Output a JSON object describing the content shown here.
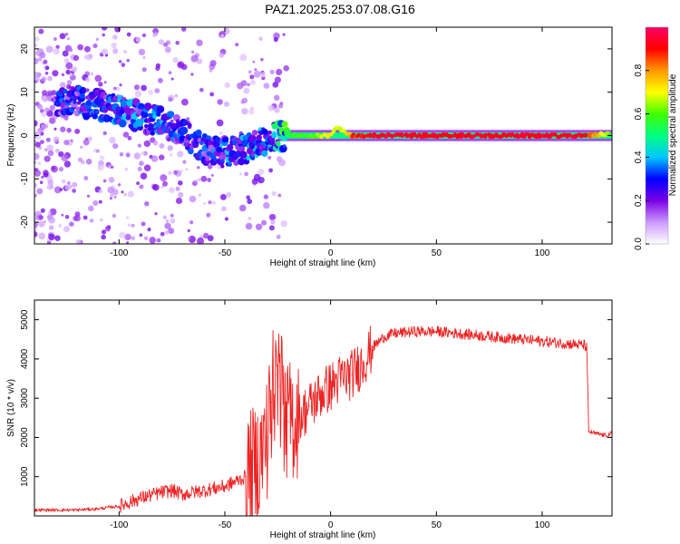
{
  "title": "PAZ1.2025.253.07.08.G16",
  "chart_data": [
    {
      "type": "heatmap",
      "xlabel": "Height of straight line (km)",
      "ylabel": "Frequency (Hz)",
      "xlim": [
        -140,
        133
      ],
      "ylim": [
        -25,
        25
      ],
      "xticks": [
        -100,
        -50,
        0,
        50,
        100
      ],
      "xtick_labels": [
        "-100",
        "-50",
        "0",
        "50",
        "100"
      ],
      "yticks": [
        -20,
        -10,
        0,
        10,
        20
      ],
      "ytick_labels": [
        "-20",
        "-10",
        "0",
        "10",
        "20"
      ],
      "colorbar": {
        "label": "Normalized spectral amplitude",
        "range": [
          0,
          1
        ],
        "ticks": [
          0.0,
          0.2,
          0.4,
          0.6,
          0.8
        ],
        "tick_labels": [
          "0.0",
          "0.2",
          "0.4",
          "0.6",
          "0.8"
        ],
        "colors": [
          "#ffffff",
          "#cc99ff",
          "#7a00e6",
          "#0000ff",
          "#00c8ff",
          "#00ff80",
          "#40ff00",
          "#ffff00",
          "#ff9900",
          "#ff0000",
          "#ff0066"
        ]
      },
      "ridge": {
        "x": [
          -120,
          -100,
          -80,
          -70,
          -60,
          -50,
          -40,
          -30,
          -25,
          -20,
          -10,
          0,
          3,
          7,
          10,
          20,
          40,
          60,
          80,
          100,
          120,
          133
        ],
        "freq": [
          8,
          6,
          3,
          1,
          -3,
          -4,
          -3,
          -1,
          0,
          0,
          0,
          0,
          2,
          1,
          0,
          0,
          0,
          0,
          0,
          0,
          0,
          0.5
        ],
        "amplitude": [
          0.3,
          0.35,
          0.35,
          0.3,
          0.3,
          0.35,
          0.4,
          0.35,
          0.5,
          0.6,
          0.6,
          0.75,
          0.7,
          0.7,
          0.9,
          0.97,
          0.97,
          0.97,
          0.97,
          0.97,
          0.97,
          0.6
        ]
      }
    },
    {
      "type": "line",
      "xlabel": "Height of straight line (km)",
      "ylabel": "SNR (10 * v/v)",
      "xlim": [
        -140,
        133
      ],
      "ylim": [
        0,
        5500
      ],
      "xticks": [
        -100,
        -50,
        0,
        50,
        100
      ],
      "xtick_labels": [
        "-100",
        "-50",
        "0",
        "50",
        "100"
      ],
      "yticks": [
        1000,
        2000,
        3000,
        4000,
        5000
      ],
      "ytick_labels": [
        "1000",
        "2000",
        "3000",
        "4000",
        "5000"
      ],
      "color": "#ee2222",
      "series": [
        {
          "name": "SNR",
          "x": [
            -140,
            -120,
            -110,
            -100,
            -90,
            -80,
            -75,
            -70,
            -60,
            -50,
            -40,
            -35,
            -30,
            -28,
            -26,
            -24,
            -22,
            -20,
            -15,
            -10,
            -5,
            0,
            5,
            10,
            15,
            20,
            25,
            30,
            40,
            50,
            60,
            70,
            80,
            90,
            100,
            110,
            120,
            121,
            122,
            125,
            130,
            133
          ],
          "y": [
            150,
            150,
            180,
            250,
            450,
            600,
            650,
            550,
            650,
            750,
            1000,
            1300,
            2000,
            2900,
            3600,
            3300,
            2700,
            2400,
            2500,
            2800,
            3100,
            3300,
            3500,
            3600,
            3900,
            4300,
            4550,
            4650,
            4700,
            4700,
            4650,
            4600,
            4550,
            4500,
            4450,
            4400,
            4350,
            4300,
            2150,
            2100,
            2050,
            2100
          ]
        }
      ]
    }
  ]
}
